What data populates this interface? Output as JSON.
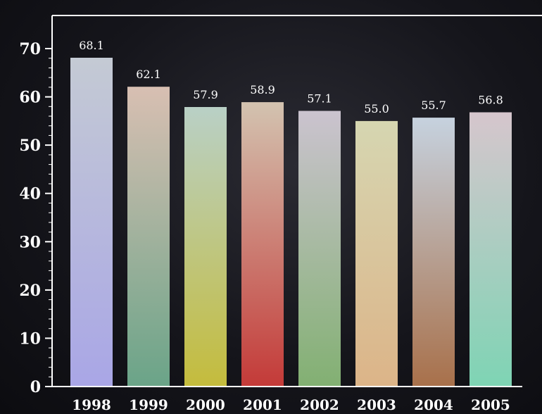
{
  "chart_data": {
    "type": "bar",
    "categories": [
      "1998",
      "1999",
      "2000",
      "2001",
      "2002",
      "2003",
      "2004",
      "2005"
    ],
    "values": [
      68.1,
      62.1,
      57.9,
      58.9,
      57.1,
      55.0,
      55.7,
      56.8
    ],
    "value_labels": [
      "68.1",
      "62.1",
      "57.9",
      "58.9",
      "57.1",
      "55.0",
      "55.7",
      "56.8"
    ],
    "y_ticks": [
      0,
      10,
      20,
      30,
      40,
      50,
      60,
      70
    ],
    "ylim": [
      0,
      70
    ],
    "grid": false,
    "legend": "none",
    "title": "",
    "xlabel": "",
    "ylabel": "",
    "colors": {
      "background": "#17171d",
      "axis": "#ffffff",
      "text": "#ffffff",
      "bars": [
        {
          "top": "#c4cad4",
          "bottom": "#a9a6e6"
        },
        {
          "top": "#d8bfb2",
          "bottom": "#6aa488"
        },
        {
          "top": "#b9d0c6",
          "bottom": "#c4bc3c"
        },
        {
          "top": "#d3c3b0",
          "bottom": "#c43a38"
        },
        {
          "top": "#cbc3cf",
          "bottom": "#82b072"
        },
        {
          "top": "#d6d6b1",
          "bottom": "#dcb488"
        },
        {
          "top": "#c6d2df",
          "bottom": "#a8704a"
        },
        {
          "top": "#d6c6cd",
          "bottom": "#7ed4b4"
        }
      ]
    }
  }
}
